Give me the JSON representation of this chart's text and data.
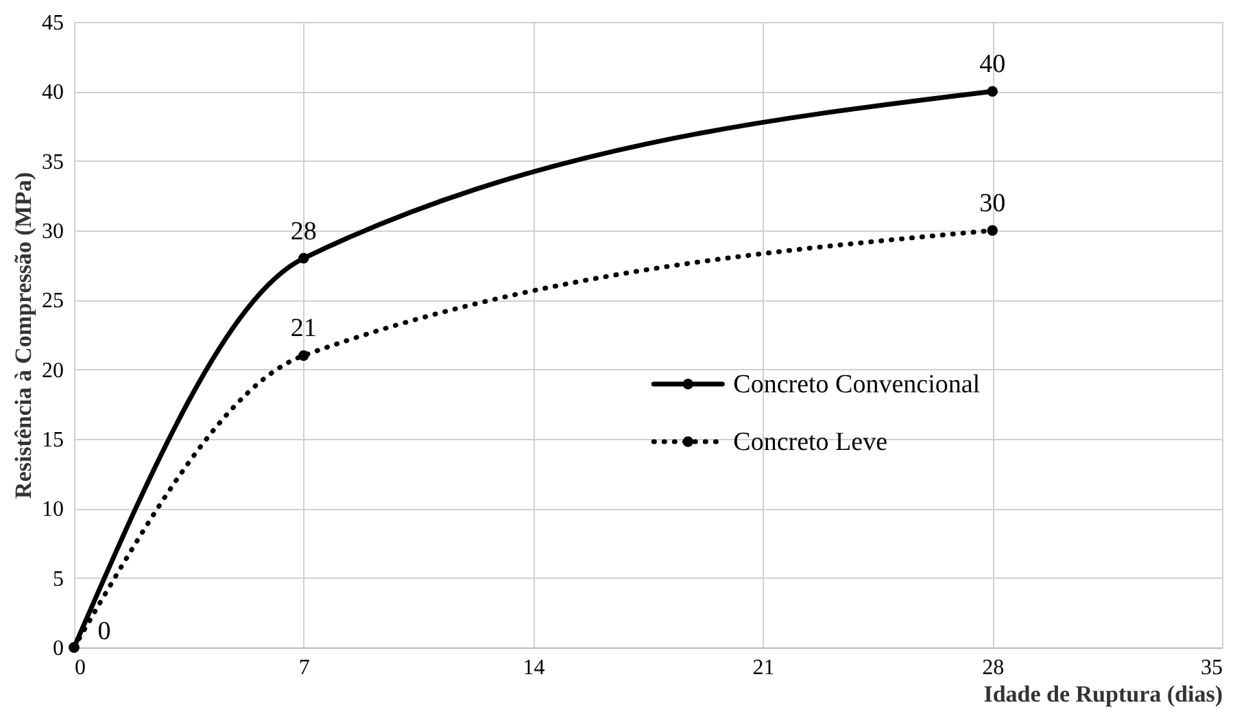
{
  "chart_data": {
    "type": "line",
    "xlabel": "Idade de Ruptura (dias)",
    "ylabel": "Resistência à Compressão (MPa)",
    "x": [
      0,
      7,
      28
    ],
    "series": [
      {
        "name": "Concreto Convencional",
        "color": "#000000",
        "values": [
          0,
          28,
          40
        ],
        "line_style": "solid",
        "value_labels": [
          "0",
          "28",
          "40"
        ]
      },
      {
        "name": "Concreto Leve",
        "color": "#000000",
        "values": [
          0,
          21,
          30
        ],
        "line_style": "dotted",
        "value_labels": [
          null,
          "21",
          "30"
        ]
      }
    ],
    "xlim": [
      0,
      35
    ],
    "xticks": [
      0,
      7,
      14,
      21,
      28,
      35
    ],
    "ylim": [
      0,
      45
    ],
    "yticks": [
      0,
      5,
      10,
      15,
      20,
      25,
      30,
      35,
      40,
      45
    ],
    "grid": true,
    "legend": "right",
    "marker": "circle"
  }
}
